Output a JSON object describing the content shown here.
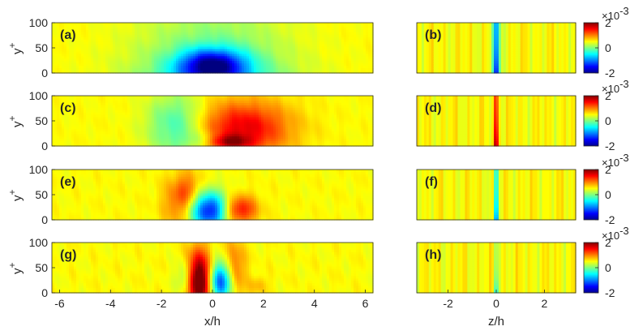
{
  "chart_data": [
    {
      "type": "heatmap",
      "panel_label": "(a)",
      "ylabel": "y+",
      "xlim": [
        -6.3,
        6.3
      ],
      "ylim": [
        0,
        100
      ],
      "yticks": [
        "0",
        "50",
        "100"
      ],
      "xticks": [],
      "pattern": "a"
    },
    {
      "type": "heatmap",
      "panel_label": "(b)",
      "ylabel": "",
      "xlim": [
        -3.3,
        3.3
      ],
      "ylim": [
        0,
        100
      ],
      "yticks": [],
      "xticks": [],
      "pattern": "b"
    },
    {
      "type": "heatmap",
      "panel_label": "(c)",
      "ylabel": "y+",
      "xlim": [
        -6.3,
        6.3
      ],
      "ylim": [
        0,
        100
      ],
      "yticks": [
        "0",
        "50",
        "100"
      ],
      "xticks": [],
      "pattern": "c"
    },
    {
      "type": "heatmap",
      "panel_label": "(d)",
      "ylabel": "",
      "xlim": [
        -3.3,
        3.3
      ],
      "ylim": [
        0,
        100
      ],
      "yticks": [],
      "xticks": [],
      "pattern": "d"
    },
    {
      "type": "heatmap",
      "panel_label": "(e)",
      "ylabel": "y+",
      "xlim": [
        -6.3,
        6.3
      ],
      "ylim": [
        0,
        100
      ],
      "yticks": [
        "0",
        "50",
        "100"
      ],
      "xticks": [],
      "pattern": "e"
    },
    {
      "type": "heatmap",
      "panel_label": "(f)",
      "ylabel": "",
      "xlim": [
        -3.3,
        3.3
      ],
      "ylim": [
        0,
        100
      ],
      "yticks": [],
      "xticks": [],
      "pattern": "f"
    },
    {
      "type": "heatmap",
      "panel_label": "(g)",
      "ylabel": "y+",
      "xlim": [
        -6.3,
        6.3
      ],
      "ylim": [
        0,
        100
      ],
      "yticks": [
        "0",
        "50",
        "100"
      ],
      "xticks": [
        "-6",
        "-4",
        "-2",
        "0",
        "2",
        "4",
        "6"
      ],
      "xlabel": "x/h",
      "pattern": "g"
    },
    {
      "type": "heatmap",
      "panel_label": "(h)",
      "ylabel": "",
      "xlim": [
        -3.3,
        3.3
      ],
      "ylim": [
        0,
        100
      ],
      "yticks": [],
      "xticks": [
        "-2",
        "0",
        "2"
      ],
      "xlabel": "z/h",
      "pattern": "h"
    }
  ],
  "colorbar": {
    "colormap": "jet",
    "ticks": [
      "2",
      "0",
      "-2"
    ],
    "exponent_prefix": "×10",
    "exponent": "-3",
    "range": [
      -0.002,
      0.002
    ]
  }
}
